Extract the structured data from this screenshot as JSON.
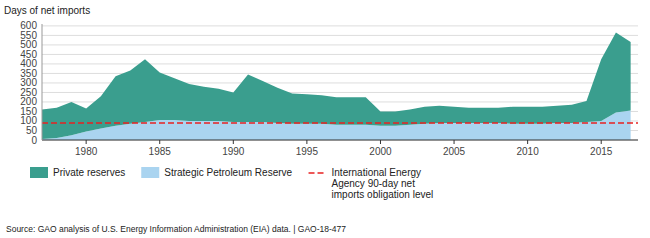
{
  "chart_data": {
    "type": "area",
    "stacked": true,
    "y_label": "Days of net imports",
    "source": "Source: GAO analysis of U.S. Energy Information Administration (EIA) data.  |  GAO-18-477",
    "x": [
      1977,
      1978,
      1979,
      1980,
      1981,
      1982,
      1983,
      1984,
      1985,
      1986,
      1987,
      1988,
      1989,
      1990,
      1991,
      1992,
      1993,
      1994,
      1995,
      1996,
      1997,
      1998,
      1999,
      2000,
      2001,
      2002,
      2003,
      2004,
      2005,
      2006,
      2007,
      2008,
      2009,
      2010,
      2011,
      2012,
      2013,
      2014,
      2015,
      2016,
      2017
    ],
    "series": [
      {
        "name": "Strategic Petroleum Reserve",
        "color": "#aad4f0",
        "values": [
          5,
          10,
          25,
          45,
          60,
          75,
          85,
          95,
          105,
          105,
          100,
          100,
          100,
          95,
          95,
          95,
          90,
          85,
          85,
          85,
          80,
          80,
          80,
          75,
          75,
          80,
          85,
          90,
          90,
          90,
          90,
          90,
          85,
          85,
          85,
          90,
          90,
          95,
          100,
          145,
          155
        ]
      },
      {
        "name": "Private reserves",
        "color": "#3a9e8e",
        "values": [
          155,
          160,
          175,
          120,
          170,
          260,
          280,
          330,
          250,
          220,
          195,
          180,
          170,
          155,
          250,
          215,
          185,
          160,
          155,
          150,
          145,
          145,
          145,
          75,
          75,
          80,
          90,
          90,
          85,
          80,
          80,
          80,
          90,
          90,
          90,
          90,
          95,
          110,
          325,
          420,
          360
        ]
      }
    ],
    "reference_lines": [
      {
        "name": "International Energy\nAgency 90-day net\nimports obligation level",
        "value": 90,
        "color": "#e82222",
        "line_style": "dashed"
      }
    ],
    "xlim": [
      1977,
      2017.5
    ],
    "xticks": [
      1980,
      1985,
      1990,
      1995,
      2000,
      2005,
      2010,
      2015
    ],
    "ylim": [
      0,
      610
    ],
    "yticks": [
      0,
      50,
      100,
      150,
      200,
      250,
      300,
      350,
      400,
      450,
      500,
      550,
      600
    ],
    "grid": true,
    "legend": "bottom"
  }
}
